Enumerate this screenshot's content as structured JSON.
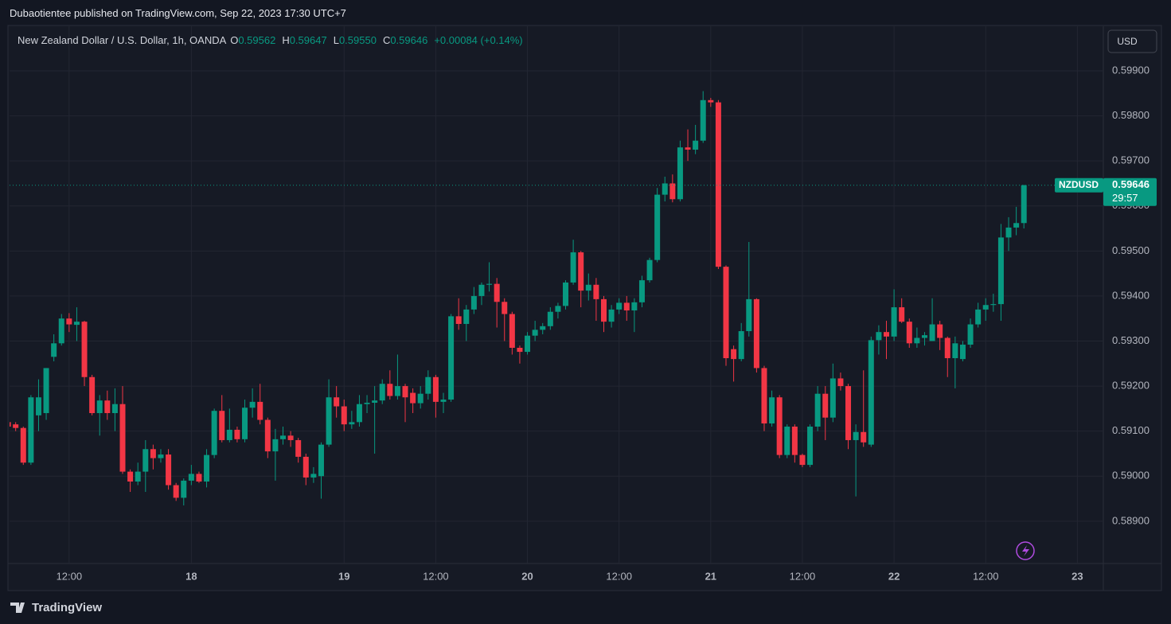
{
  "header": {
    "publisher": "Dubaotientee published on TradingView.com, Sep 22, 2023 17:30 UTC+7",
    "symbol": "New Zealand Dollar / U.S. Dollar, 1h, OANDA",
    "o_label": "O",
    "o_value": "0.59562",
    "h_label": "H",
    "h_value": "0.59647",
    "l_label": "L",
    "l_value": "0.59550",
    "c_label": "C",
    "c_value": "0.59646",
    "change": "+0.00084 (+0.14%)",
    "currency": "USD"
  },
  "footer": {
    "brand": "TradingView"
  },
  "last_price": {
    "symbol": "NZDUSD",
    "value": 0.59646,
    "countdown": "29:57"
  },
  "chart_data": {
    "type": "candlestick",
    "up_color": "#089981",
    "down_color": "#f23645",
    "grid": true,
    "xlim": [
      0.2,
      143.4
    ],
    "xticks": [
      {
        "value": 8,
        "label": "12:00"
      },
      {
        "value": 24,
        "label": "18"
      },
      {
        "value": 44,
        "label": "19"
      },
      {
        "value": 56,
        "label": "12:00"
      },
      {
        "value": 68,
        "label": "20"
      },
      {
        "value": 80,
        "label": "12:00"
      },
      {
        "value": 92,
        "label": "21"
      },
      {
        "value": 104,
        "label": "12:00"
      },
      {
        "value": 116,
        "label": "22"
      },
      {
        "value": 128,
        "label": "12:00"
      },
      {
        "value": 140,
        "label": "23"
      }
    ],
    "ylim": [
      0.58806,
      0.59999
    ],
    "yticks": [
      {
        "value": 0.589,
        "label": "0.58900"
      },
      {
        "value": 0.59,
        "label": "0.59000"
      },
      {
        "value": 0.591,
        "label": "0.59100"
      },
      {
        "value": 0.592,
        "label": "0.59200"
      },
      {
        "value": 0.593,
        "label": "0.59300"
      },
      {
        "value": 0.594,
        "label": "0.59400"
      },
      {
        "value": 0.595,
        "label": "0.59500"
      },
      {
        "value": 0.596,
        "label": "0.59600"
      },
      {
        "value": 0.597,
        "label": "0.59700"
      },
      {
        "value": 0.598,
        "label": "0.59800"
      },
      {
        "value": 0.599,
        "label": "0.59900"
      }
    ],
    "open": [
      0.5912,
      0.59115,
      0.59107,
      0.5903,
      0.59135,
      0.5914,
      0.59265,
      0.59295,
      0.5935,
      0.59336,
      0.59343,
      0.5922,
      0.5914,
      0.59168,
      0.5914,
      0.5916,
      0.5901,
      0.58988,
      0.5901,
      0.5906,
      0.5904,
      0.59048,
      0.5898,
      0.58952,
      0.5899,
      0.59005,
      0.58988,
      0.59047,
      0.59145,
      0.5908,
      0.59103,
      0.59082,
      0.59152,
      0.59165,
      0.59125,
      0.59055,
      0.59082,
      0.5909,
      0.5908,
      0.59043,
      0.58997,
      0.59,
      0.5907,
      0.59175,
      0.59155,
      0.59115,
      0.5912,
      0.5916,
      0.59163,
      0.59168,
      0.59205,
      0.59178,
      0.592,
      0.59185,
      0.59162,
      0.59183,
      0.5922,
      0.59165,
      0.5917,
      0.59355,
      0.59338,
      0.5937,
      0.594,
      0.59425,
      0.59427,
      0.59387,
      0.5936,
      0.59285,
      0.59276,
      0.59312,
      0.59325,
      0.59333,
      0.59365,
      0.59378,
      0.5943,
      0.59497,
      0.59412,
      0.59425,
      0.59393,
      0.59343,
      0.5937,
      0.59385,
      0.59368,
      0.59386,
      0.59435,
      0.5948,
      0.59625,
      0.5965,
      0.59615,
      0.5973,
      0.59725,
      0.59745,
      0.59835,
      0.5983,
      0.59465,
      0.59282,
      0.5926,
      0.59322,
      0.59393,
      0.5924,
      0.59117,
      0.59175,
      0.59047,
      0.5911,
      0.59047,
      0.59025,
      0.5911,
      0.59183,
      0.5913,
      0.59217,
      0.592,
      0.5908,
      0.59098,
      0.5907,
      0.59302,
      0.5932,
      0.5931,
      0.59375,
      0.59343,
      0.59295,
      0.59307,
      0.593,
      0.59337,
      0.59307,
      0.59262,
      0.5926,
      0.59292,
      0.59337,
      0.5937,
      0.5938,
      0.59382,
      0.5953,
      0.59552,
      0.59562
    ],
    "high": [
      0.59125,
      0.5912,
      0.5911,
      0.5918,
      0.59215,
      0.5924,
      0.59315,
      0.5936,
      0.59362,
      0.59375,
      0.59345,
      0.59225,
      0.5918,
      0.5919,
      0.59195,
      0.592,
      0.59015,
      0.5903,
      0.5908,
      0.5907,
      0.5906,
      0.5906,
      0.58985,
      0.58995,
      0.59025,
      0.5901,
      0.5906,
      0.5915,
      0.5918,
      0.5915,
      0.5911,
      0.5917,
      0.59195,
      0.59205,
      0.5913,
      0.59105,
      0.5911,
      0.591,
      0.59085,
      0.5905,
      0.5902,
      0.59075,
      0.59215,
      0.592,
      0.5917,
      0.59145,
      0.5918,
      0.5918,
      0.592,
      0.59215,
      0.59235,
      0.5927,
      0.59205,
      0.59195,
      0.592,
      0.59235,
      0.59225,
      0.59185,
      0.5936,
      0.59395,
      0.5938,
      0.5942,
      0.5943,
      0.59475,
      0.5944,
      0.59395,
      0.59365,
      0.5929,
      0.5932,
      0.59345,
      0.5934,
      0.59375,
      0.59385,
      0.59435,
      0.59525,
      0.595,
      0.5945,
      0.5944,
      0.594,
      0.5938,
      0.59395,
      0.594,
      0.59395,
      0.59445,
      0.59485,
      0.5964,
      0.59665,
      0.5967,
      0.59745,
      0.5977,
      0.5978,
      0.59855,
      0.5984,
      0.59835,
      0.59468,
      0.5929,
      0.5934,
      0.5952,
      0.59395,
      0.59245,
      0.5919,
      0.5918,
      0.59115,
      0.59115,
      0.5905,
      0.59115,
      0.592,
      0.592,
      0.5925,
      0.5923,
      0.59205,
      0.59115,
      0.59235,
      0.5931,
      0.59335,
      0.59345,
      0.59415,
      0.59395,
      0.5935,
      0.5933,
      0.5932,
      0.59395,
      0.59345,
      0.5931,
      0.5931,
      0.593,
      0.5935,
      0.59385,
      0.59395,
      0.59405,
      0.5956,
      0.59575,
      0.59598,
      0.59647
    ],
    "low": [
      0.59085,
      0.591,
      0.59025,
      0.59025,
      0.591,
      0.59125,
      0.59255,
      0.5929,
      0.5932,
      0.593,
      0.592,
      0.59135,
      0.5909,
      0.59125,
      0.591,
      0.59005,
      0.58965,
      0.5898,
      0.58965,
      0.59015,
      0.5903,
      0.5897,
      0.58945,
      0.58935,
      0.5898,
      0.58985,
      0.58975,
      0.5904,
      0.59075,
      0.59075,
      0.59075,
      0.59075,
      0.5913,
      0.59115,
      0.5904,
      0.5899,
      0.5907,
      0.59065,
      0.5903,
      0.5898,
      0.58985,
      0.5895,
      0.59065,
      0.5913,
      0.591,
      0.59105,
      0.5911,
      0.5914,
      0.5905,
      0.5916,
      0.5917,
      0.5917,
      0.5912,
      0.5914,
      0.5915,
      0.5917,
      0.5913,
      0.5914,
      0.59165,
      0.59325,
      0.593,
      0.5936,
      0.5938,
      0.5941,
      0.5933,
      0.593,
      0.5927,
      0.5925,
      0.5927,
      0.593,
      0.59315,
      0.59325,
      0.5935,
      0.5937,
      0.59425,
      0.59375,
      0.5939,
      0.59345,
      0.5932,
      0.5933,
      0.5936,
      0.59345,
      0.5932,
      0.59375,
      0.5943,
      0.59475,
      0.5961,
      0.59608,
      0.5961,
      0.597,
      0.59715,
      0.5974,
      0.5982,
      0.5946,
      0.59245,
      0.5921,
      0.59255,
      0.5931,
      0.5923,
      0.591,
      0.5911,
      0.5904,
      0.5904,
      0.5903,
      0.5902,
      0.5902,
      0.591,
      0.5908,
      0.5912,
      0.5919,
      0.5906,
      0.58955,
      0.59065,
      0.59065,
      0.5927,
      0.5926,
      0.593,
      0.5934,
      0.59285,
      0.59285,
      0.5929,
      0.593,
      0.5928,
      0.5922,
      0.59195,
      0.59255,
      0.59285,
      0.5933,
      0.59345,
      0.59365,
      0.59345,
      0.595,
      0.59535,
      0.5955
    ],
    "close": [
      0.5911,
      0.59107,
      0.5903,
      0.59175,
      0.59175,
      0.5924,
      0.59295,
      0.5935,
      0.59337,
      0.59343,
      0.5922,
      0.5914,
      0.59168,
      0.5914,
      0.5916,
      0.5901,
      0.58988,
      0.5901,
      0.5906,
      0.5904,
      0.59048,
      0.5898,
      0.58952,
      0.5899,
      0.59005,
      0.58988,
      0.59047,
      0.59145,
      0.5908,
      0.59103,
      0.59082,
      0.59152,
      0.59165,
      0.59125,
      0.59055,
      0.59082,
      0.5909,
      0.5908,
      0.59043,
      0.58997,
      0.59005,
      0.5907,
      0.59175,
      0.59155,
      0.59115,
      0.5912,
      0.5916,
      0.59163,
      0.59168,
      0.59205,
      0.59178,
      0.592,
      0.59175,
      0.59162,
      0.59183,
      0.5922,
      0.59165,
      0.5917,
      0.59355,
      0.59338,
      0.5937,
      0.594,
      0.59425,
      0.59427,
      0.59387,
      0.5936,
      0.59285,
      0.59276,
      0.59312,
      0.59325,
      0.59333,
      0.59365,
      0.59378,
      0.5943,
      0.59497,
      0.59412,
      0.59425,
      0.59393,
      0.59343,
      0.5937,
      0.59385,
      0.59368,
      0.59386,
      0.59435,
      0.5948,
      0.59625,
      0.5965,
      0.59615,
      0.5973,
      0.59725,
      0.59745,
      0.59835,
      0.5983,
      0.59465,
      0.59262,
      0.5926,
      0.59322,
      0.59393,
      0.5924,
      0.59117,
      0.59175,
      0.59047,
      0.5911,
      0.59047,
      0.59025,
      0.5911,
      0.59183,
      0.5913,
      0.59217,
      0.592,
      0.5908,
      0.59098,
      0.59075,
      0.59302,
      0.5932,
      0.5931,
      0.59375,
      0.59343,
      0.59295,
      0.59307,
      0.59313,
      0.59337,
      0.59307,
      0.59262,
      0.59295,
      0.59292,
      0.59337,
      0.5937,
      0.5938,
      0.59382,
      0.5953,
      0.59552,
      0.59562,
      0.59646
    ]
  }
}
